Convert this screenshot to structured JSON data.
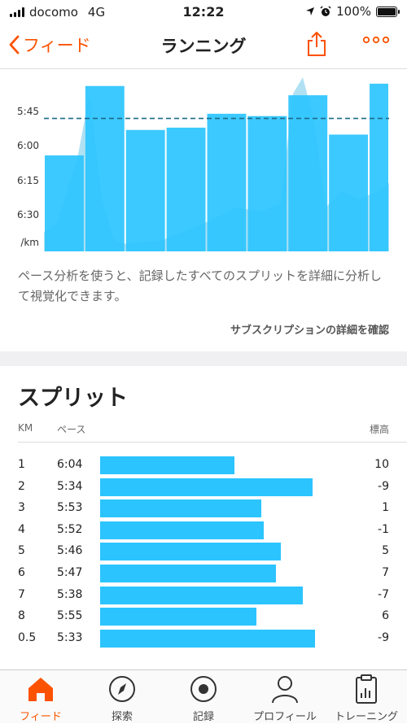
{
  "status_bar": {
    "carrier": "docomo",
    "network": "4G",
    "time": "12:22",
    "battery": "100%",
    "icons": [
      "signal-icon",
      "location-arrow-icon",
      "alarm-icon",
      "battery-icon"
    ]
  },
  "nav": {
    "back_label": "フィード",
    "title": "ランニング",
    "share_icon": "share-icon",
    "more_icon": "more-icon"
  },
  "chart_data": {
    "type": "bar",
    "title": "",
    "xlabel": "",
    "ylabel": "/km",
    "y_ticks": [
      "5:45",
      "6:00",
      "6:15",
      "6:30"
    ],
    "y_unit_label": "/km",
    "reference_line_label": "",
    "reference_line_value": "5:48",
    "categories": [
      "1",
      "2",
      "3",
      "4",
      "5",
      "6",
      "7",
      "8",
      "0.5"
    ],
    "values": [
      "6:04",
      "5:34",
      "5:53",
      "5:52",
      "5:46",
      "5:47",
      "5:38",
      "5:55",
      "5:33"
    ],
    "widths_km": [
      1,
      1,
      1,
      1,
      1,
      1,
      1,
      1,
      0.5
    ],
    "grid": false,
    "colors": {
      "bar": "#2bc4ff",
      "reference": "#1c6a86",
      "elevation": "#1aa8dd"
    }
  },
  "description": "ペース分析を使うと、記録したすべてのスプリットを詳細に分析して視覚化できます。",
  "subscription_link": "サブスクリプションの詳細を確認",
  "splits": {
    "title": "スプリット",
    "headers": {
      "km": "KM",
      "pace": "ペース",
      "elevation": "標高"
    },
    "rows": [
      {
        "km": "1",
        "pace": "6:04",
        "elev": "10",
        "ratio": 0.55
      },
      {
        "km": "2",
        "pace": "5:34",
        "elev": "-9",
        "ratio": 0.87
      },
      {
        "km": "3",
        "pace": "5:53",
        "elev": "1",
        "ratio": 0.66
      },
      {
        "km": "4",
        "pace": "5:52",
        "elev": "-1",
        "ratio": 0.67
      },
      {
        "km": "5",
        "pace": "5:46",
        "elev": "5",
        "ratio": 0.74
      },
      {
        "km": "6",
        "pace": "5:47",
        "elev": "7",
        "ratio": 0.72
      },
      {
        "km": "7",
        "pace": "5:38",
        "elev": "-7",
        "ratio": 0.83
      },
      {
        "km": "8",
        "pace": "5:55",
        "elev": "6",
        "ratio": 0.64
      },
      {
        "km": "0.5",
        "pace": "5:33",
        "elev": "-9",
        "ratio": 0.88
      }
    ]
  },
  "tabs": [
    {
      "label": "フィード",
      "icon": "home-icon",
      "active": true
    },
    {
      "label": "探索",
      "icon": "compass-icon",
      "active": false
    },
    {
      "label": "記録",
      "icon": "record-icon",
      "active": false
    },
    {
      "label": "プロフィール",
      "icon": "profile-icon",
      "active": false
    },
    {
      "label": "トレーニング",
      "icon": "training-clipboard-icon",
      "active": false
    }
  ],
  "accent_color": "#fc5200"
}
